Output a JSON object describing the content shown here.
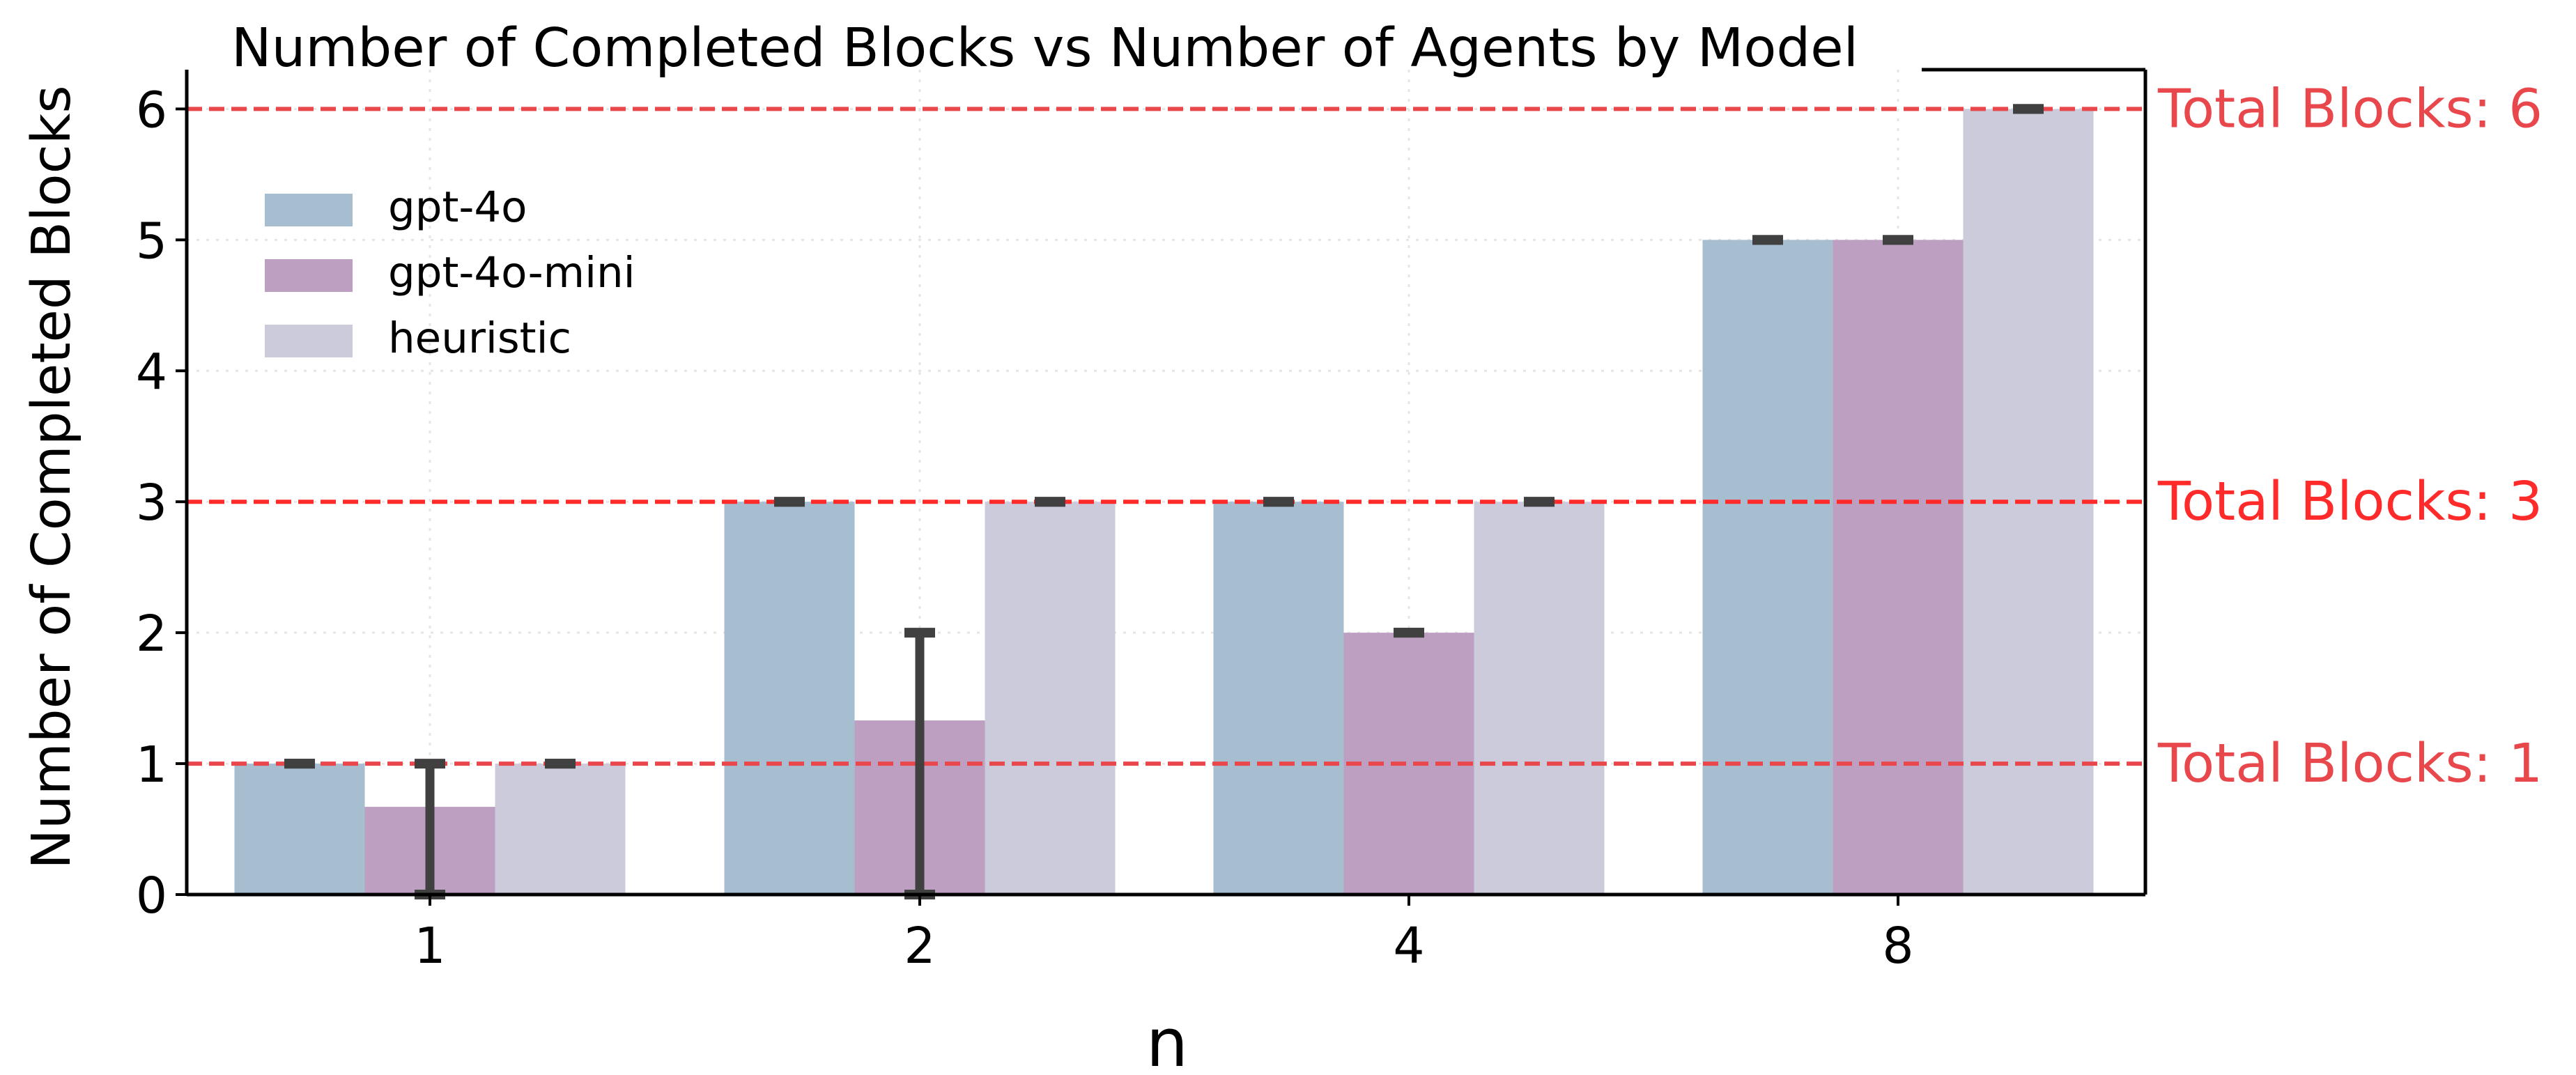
{
  "chart_data": {
    "type": "bar",
    "title": "Number of Completed Blocks vs Number of Agents by Model",
    "xlabel": "n",
    "ylabel": "Number of Completed Blocks",
    "categories": [
      "1",
      "2",
      "4",
      "8"
    ],
    "ylim": [
      0,
      6.3
    ],
    "yticks": [
      "0",
      "1",
      "2",
      "3",
      "4",
      "5",
      "6"
    ],
    "grid": true,
    "legend_position": "upper-left",
    "series": [
      {
        "name": "gpt-4o",
        "color": "#a7bdd0",
        "values": [
          1,
          3,
          3,
          5
        ],
        "err_low": [
          1,
          3,
          3,
          5
        ],
        "err_high": [
          1,
          3,
          3,
          5
        ]
      },
      {
        "name": "gpt-4o-mini",
        "color": "#bda0c1",
        "values": [
          0.67,
          1.33,
          2,
          5
        ],
        "err_low": [
          0,
          0,
          2,
          5
        ],
        "err_high": [
          1,
          2,
          2,
          5
        ]
      },
      {
        "name": "heuristic",
        "color": "#cccbdc",
        "values": [
          1,
          3,
          3,
          6
        ],
        "err_low": [
          1,
          3,
          3,
          6
        ],
        "err_high": [
          1,
          3,
          3,
          6
        ]
      }
    ],
    "reference_lines": [
      {
        "y": 6,
        "label": "Total Blocks: 6",
        "color": "#e8474c"
      },
      {
        "y": 3,
        "label": "Total Blocks: 3",
        "color": "#ff2a2a"
      },
      {
        "y": 1,
        "label": "Total Blocks: 1",
        "color": "#e8474c"
      }
    ]
  }
}
